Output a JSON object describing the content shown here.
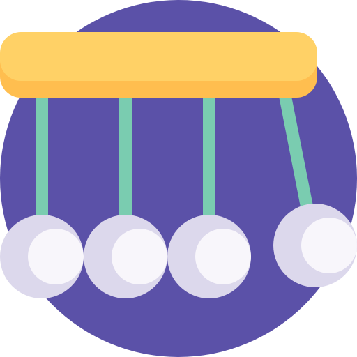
{
  "icon": {
    "name": "newtons-cradle-icon",
    "colors": {
      "background_circle": "#5B51A8",
      "bar_top": "#FFD166",
      "bar_bottom": "#FFBE4F",
      "string": "#7ACCB0",
      "ball_light": "#F8F6FB",
      "ball_shadow": "#DCD8EC"
    }
  }
}
